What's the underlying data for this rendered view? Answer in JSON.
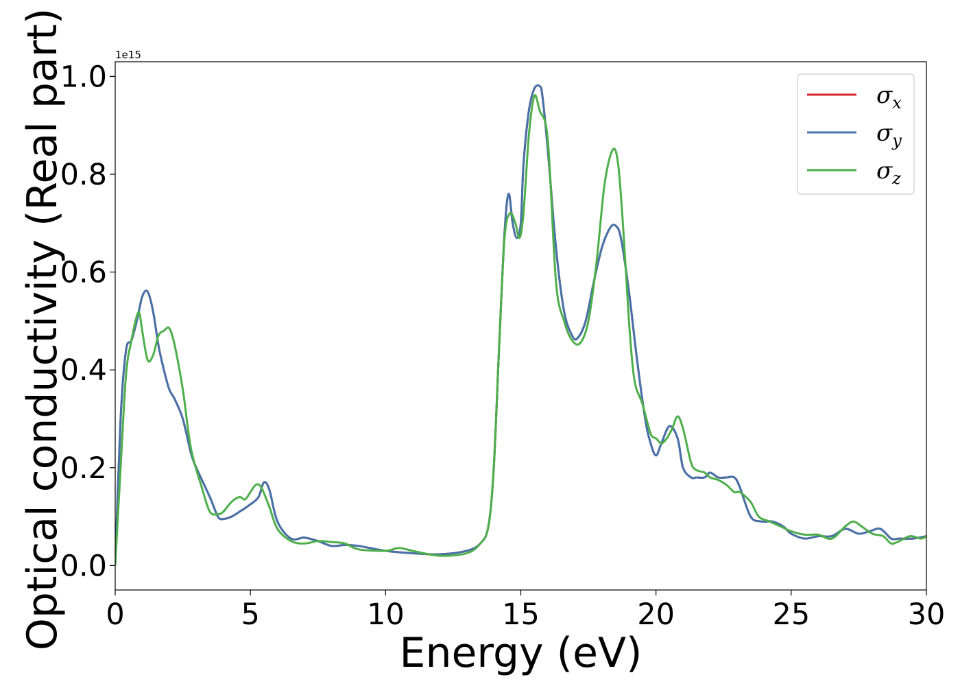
{
  "chart_data": {
    "type": "line",
    "title": "",
    "xlabel": "Energy (eV)",
    "ylabel": "Optical conductivity (Real part)",
    "y_offset_label": "1e15",
    "xlim": [
      0,
      30
    ],
    "ylim": [
      -0.05,
      1.03
    ],
    "x_ticks": [
      0,
      5,
      10,
      15,
      20,
      25,
      30
    ],
    "x_tick_labels": [
      "0",
      "5",
      "10",
      "15",
      "20",
      "25",
      "30"
    ],
    "y_ticks": [
      0.0,
      0.2,
      0.4,
      0.6,
      0.8,
      1.0
    ],
    "y_tick_labels": [
      "0.0",
      "0.2",
      "0.4",
      "0.6",
      "0.8",
      "1.0"
    ],
    "grid": false,
    "legend_position": "top-right",
    "series": [
      {
        "name": "σx",
        "base": "σ",
        "sub": "x",
        "color": "#d62728",
        "width": 3,
        "x": [
          0,
          0.2,
          0.4,
          0.6,
          0.8,
          1.0,
          1.2,
          1.4,
          1.6,
          1.8,
          2.0,
          2.2,
          2.5,
          2.8,
          3.0,
          3.5,
          3.8,
          4.0,
          4.3,
          4.6,
          5.0,
          5.3,
          5.5,
          5.7,
          6.0,
          6.5,
          7.0,
          7.5,
          8.0,
          8.5,
          9.0,
          10.0,
          11.0,
          12.0,
          13.0,
          13.5,
          13.8,
          14.0,
          14.2,
          14.4,
          14.55,
          14.7,
          14.85,
          15.0,
          15.1,
          15.3,
          15.5,
          15.7,
          15.8,
          16.0,
          16.3,
          16.6,
          16.9,
          17.1,
          17.4,
          17.7,
          18.0,
          18.3,
          18.5,
          18.7,
          19.0,
          19.3,
          19.6,
          19.8,
          20.0,
          20.2,
          20.5,
          20.8,
          21.0,
          21.3,
          21.5,
          21.8,
          22.0,
          22.3,
          22.6,
          22.9,
          23.1,
          23.5,
          23.9,
          24.3,
          24.7,
          25.0,
          25.5,
          26.0,
          26.5,
          27.0,
          27.5,
          27.9,
          28.3,
          28.7,
          29.0,
          29.5,
          30.0
        ],
        "y": [
          0.0,
          0.3,
          0.44,
          0.46,
          0.5,
          0.55,
          0.56,
          0.52,
          0.45,
          0.4,
          0.36,
          0.34,
          0.3,
          0.23,
          0.2,
          0.14,
          0.1,
          0.095,
          0.1,
          0.11,
          0.125,
          0.14,
          0.17,
          0.155,
          0.09,
          0.055,
          0.057,
          0.05,
          0.04,
          0.042,
          0.04,
          0.03,
          0.025,
          0.023,
          0.03,
          0.045,
          0.08,
          0.2,
          0.45,
          0.68,
          0.76,
          0.7,
          0.67,
          0.7,
          0.82,
          0.93,
          0.975,
          0.98,
          0.96,
          0.85,
          0.65,
          0.52,
          0.47,
          0.465,
          0.5,
          0.58,
          0.65,
          0.69,
          0.695,
          0.67,
          0.56,
          0.42,
          0.3,
          0.25,
          0.225,
          0.25,
          0.285,
          0.26,
          0.2,
          0.18,
          0.18,
          0.18,
          0.19,
          0.18,
          0.18,
          0.18,
          0.16,
          0.1,
          0.09,
          0.09,
          0.08,
          0.065,
          0.055,
          0.06,
          0.06,
          0.075,
          0.065,
          0.07,
          0.075,
          0.055,
          0.055,
          0.055,
          0.06
        ]
      },
      {
        "name": "σy",
        "base": "σ",
        "sub": "y",
        "color": "#4472aa",
        "width": 3,
        "x": [
          0,
          0.2,
          0.4,
          0.6,
          0.8,
          1.0,
          1.2,
          1.4,
          1.6,
          1.8,
          2.0,
          2.2,
          2.5,
          2.8,
          3.0,
          3.5,
          3.8,
          4.0,
          4.3,
          4.6,
          5.0,
          5.3,
          5.5,
          5.7,
          6.0,
          6.5,
          7.0,
          7.5,
          8.0,
          8.5,
          9.0,
          10.0,
          11.0,
          12.0,
          13.0,
          13.5,
          13.8,
          14.0,
          14.2,
          14.4,
          14.55,
          14.7,
          14.85,
          15.0,
          15.1,
          15.3,
          15.5,
          15.7,
          15.8,
          16.0,
          16.3,
          16.6,
          16.9,
          17.1,
          17.4,
          17.7,
          18.0,
          18.3,
          18.5,
          18.7,
          19.0,
          19.3,
          19.6,
          19.8,
          20.0,
          20.2,
          20.5,
          20.8,
          21.0,
          21.3,
          21.5,
          21.8,
          22.0,
          22.3,
          22.6,
          22.9,
          23.1,
          23.5,
          23.9,
          24.3,
          24.7,
          25.0,
          25.5,
          26.0,
          26.5,
          27.0,
          27.5,
          27.9,
          28.3,
          28.7,
          29.0,
          29.5,
          30.0
        ],
        "y": [
          0.0,
          0.3,
          0.44,
          0.46,
          0.5,
          0.55,
          0.56,
          0.52,
          0.45,
          0.4,
          0.36,
          0.34,
          0.3,
          0.23,
          0.2,
          0.14,
          0.1,
          0.095,
          0.1,
          0.11,
          0.125,
          0.14,
          0.17,
          0.155,
          0.09,
          0.055,
          0.057,
          0.05,
          0.04,
          0.042,
          0.04,
          0.03,
          0.025,
          0.023,
          0.03,
          0.045,
          0.08,
          0.2,
          0.45,
          0.68,
          0.76,
          0.7,
          0.67,
          0.7,
          0.82,
          0.93,
          0.975,
          0.98,
          0.96,
          0.85,
          0.65,
          0.52,
          0.47,
          0.465,
          0.5,
          0.58,
          0.65,
          0.69,
          0.695,
          0.67,
          0.56,
          0.42,
          0.3,
          0.25,
          0.225,
          0.25,
          0.285,
          0.26,
          0.2,
          0.18,
          0.18,
          0.18,
          0.19,
          0.18,
          0.18,
          0.18,
          0.16,
          0.1,
          0.09,
          0.09,
          0.08,
          0.065,
          0.055,
          0.06,
          0.06,
          0.075,
          0.065,
          0.07,
          0.075,
          0.055,
          0.055,
          0.055,
          0.06
        ]
      },
      {
        "name": "σz",
        "base": "σ",
        "sub": "z",
        "color": "#4daf4a",
        "width": 3,
        "x": [
          0,
          0.2,
          0.4,
          0.6,
          0.8,
          0.9,
          1.0,
          1.2,
          1.4,
          1.6,
          1.8,
          2.0,
          2.2,
          2.5,
          2.8,
          3.2,
          3.5,
          3.8,
          4.0,
          4.3,
          4.6,
          4.8,
          5.0,
          5.2,
          5.4,
          5.7,
          6.0,
          6.5,
          7.0,
          7.5,
          8.0,
          8.5,
          9.0,
          10.0,
          10.5,
          11.0,
          12.0,
          13.0,
          13.5,
          13.8,
          14.0,
          14.2,
          14.4,
          14.6,
          14.8,
          14.95,
          15.1,
          15.3,
          15.5,
          15.7,
          16.0,
          16.3,
          16.6,
          16.9,
          17.2,
          17.5,
          17.8,
          18.1,
          18.4,
          18.6,
          18.8,
          19.0,
          19.2,
          19.5,
          19.8,
          20.0,
          20.2,
          20.4,
          20.6,
          20.8,
          21.0,
          21.3,
          21.5,
          21.8,
          22.0,
          22.3,
          22.6,
          22.9,
          23.1,
          23.5,
          23.8,
          24.2,
          24.6,
          25.0,
          25.5,
          26.0,
          26.5,
          27.0,
          27.3,
          27.6,
          28.0,
          28.4,
          28.7,
          29.0,
          29.4,
          29.8,
          30.0
        ],
        "y": [
          0.0,
          0.2,
          0.39,
          0.46,
          0.51,
          0.515,
          0.48,
          0.42,
          0.43,
          0.47,
          0.48,
          0.485,
          0.45,
          0.36,
          0.24,
          0.16,
          0.11,
          0.105,
          0.11,
          0.13,
          0.14,
          0.135,
          0.15,
          0.165,
          0.16,
          0.12,
          0.075,
          0.05,
          0.045,
          0.05,
          0.048,
          0.045,
          0.033,
          0.03,
          0.036,
          0.03,
          0.02,
          0.025,
          0.045,
          0.08,
          0.2,
          0.45,
          0.67,
          0.72,
          0.7,
          0.67,
          0.72,
          0.88,
          0.96,
          0.93,
          0.87,
          0.58,
          0.5,
          0.46,
          0.455,
          0.5,
          0.62,
          0.78,
          0.85,
          0.82,
          0.68,
          0.5,
          0.38,
          0.33,
          0.27,
          0.26,
          0.25,
          0.26,
          0.28,
          0.305,
          0.28,
          0.21,
          0.195,
          0.19,
          0.18,
          0.175,
          0.165,
          0.15,
          0.15,
          0.13,
          0.1,
          0.09,
          0.08,
          0.07,
          0.063,
          0.063,
          0.055,
          0.08,
          0.09,
          0.08,
          0.065,
          0.06,
          0.045,
          0.05,
          0.06,
          0.055,
          0.06
        ]
      }
    ]
  }
}
